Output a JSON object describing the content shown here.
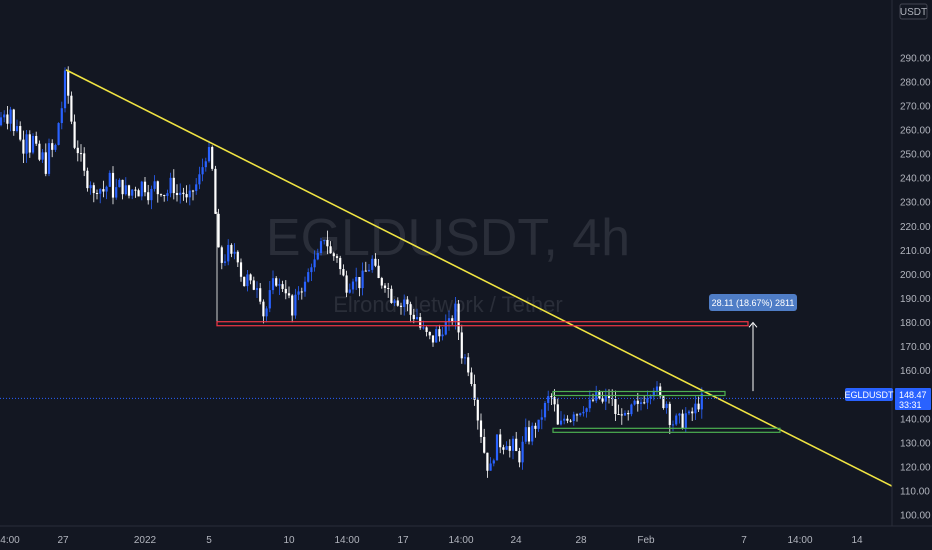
{
  "symbol_watermark": "EGLDUSDT, 4h",
  "name_watermark": "Elrond Network / Tether",
  "currency_label": "USDT",
  "price_tag": {
    "symbol": "EGLDUSDT",
    "price": "148.47",
    "countdown": "33:31"
  },
  "measure_label": "28.11 (18.67%) 2811",
  "colors": {
    "background": "#131722",
    "up": "#2962ff",
    "down": "#ffffff",
    "trendline": "#f0e442",
    "support": "#f23645",
    "range": "#4caf50",
    "price_tag": "#2962ff"
  },
  "chart_data": {
    "type": "candlestick",
    "ylim": [
      95,
      300
    ],
    "y_ticks": [
      100,
      110,
      120,
      130,
      140,
      150,
      160,
      170,
      180,
      190,
      200,
      210,
      220,
      230,
      240,
      250,
      260,
      270,
      280,
      290
    ],
    "y_tick_labels": [
      "100.00",
      "110.00",
      "120.00",
      "130.00",
      "140.00",
      "150.00",
      "160.00",
      "170.00",
      "180.00",
      "190.00",
      "200.00",
      "210.00",
      "220.00",
      "230.00",
      "240.00",
      "250.00",
      "260.00",
      "270.00",
      "280.00",
      "290.00"
    ],
    "x_ticks": [
      "4:00",
      "27",
      "2022",
      "5",
      "10",
      "14:00",
      "17",
      "14:00",
      "24",
      "28",
      "Feb",
      "7",
      "14:00",
      "14"
    ],
    "price_path": [
      [
        0,
        262
      ],
      [
        3,
        272
      ],
      [
        6,
        262
      ],
      [
        10,
        271
      ],
      [
        14,
        258
      ],
      [
        18,
        265
      ],
      [
        22,
        248
      ],
      [
        26,
        262
      ],
      [
        30,
        252
      ],
      [
        34,
        258
      ],
      [
        38,
        246
      ],
      [
        42,
        250
      ],
      [
        46,
        244
      ],
      [
        50,
        255
      ],
      [
        54,
        248
      ],
      [
        58,
        262
      ],
      [
        62,
        270
      ],
      [
        64,
        280
      ],
      [
        66,
        284
      ],
      [
        68,
        275
      ],
      [
        70,
        268
      ],
      [
        72,
        262
      ],
      [
        74,
        256
      ],
      [
        76,
        250
      ],
      [
        78,
        252
      ],
      [
        82,
        246
      ],
      [
        86,
        238
      ],
      [
        90,
        240
      ],
      [
        94,
        232
      ],
      [
        98,
        238
      ],
      [
        102,
        234
      ],
      [
        106,
        236
      ],
      [
        110,
        240
      ],
      [
        114,
        232
      ],
      [
        118,
        238
      ],
      [
        122,
        236
      ],
      [
        126,
        235
      ],
      [
        130,
        232
      ],
      [
        134,
        238
      ],
      [
        138,
        234
      ],
      [
        142,
        238
      ],
      [
        146,
        236
      ],
      [
        150,
        232
      ],
      [
        154,
        238
      ],
      [
        158,
        234
      ],
      [
        162,
        236
      ],
      [
        166,
        232
      ],
      [
        170,
        238
      ],
      [
        174,
        236
      ],
      [
        178,
        232
      ],
      [
        182,
        236
      ],
      [
        186,
        230
      ],
      [
        190,
        232
      ],
      [
        194,
        236
      ],
      [
        198,
        238
      ],
      [
        202,
        244
      ],
      [
        206,
        250
      ],
      [
        208,
        252
      ],
      [
        210,
        248
      ],
      [
        212,
        244
      ],
      [
        214,
        232
      ],
      [
        216,
        222
      ],
      [
        218,
        210
      ],
      [
        220,
        205
      ],
      [
        224,
        206
      ],
      [
        228,
        210
      ],
      [
        232,
        206
      ],
      [
        236,
        212
      ],
      [
        240,
        202
      ],
      [
        244,
        196
      ],
      [
        248,
        199
      ],
      [
        252,
        193
      ],
      [
        256,
        198
      ],
      [
        260,
        192
      ],
      [
        264,
        182
      ],
      [
        268,
        188
      ],
      [
        272,
        195
      ],
      [
        276,
        198
      ],
      [
        280,
        194
      ],
      [
        284,
        196
      ],
      [
        288,
        192
      ],
      [
        292,
        182
      ],
      [
        296,
        190
      ],
      [
        300,
        196
      ],
      [
        304,
        194
      ],
      [
        308,
        200
      ],
      [
        312,
        206
      ],
      [
        316,
        204
      ],
      [
        320,
        210
      ],
      [
        324,
        216
      ],
      [
        328,
        212
      ],
      [
        332,
        206
      ],
      [
        336,
        210
      ],
      [
        340,
        202
      ],
      [
        344,
        198
      ],
      [
        348,
        194
      ],
      [
        352,
        200
      ],
      [
        356,
        198
      ],
      [
        360,
        196
      ],
      [
        364,
        200
      ],
      [
        368,
        202
      ],
      [
        372,
        206
      ],
      [
        376,
        200
      ],
      [
        380,
        196
      ],
      [
        384,
        198
      ],
      [
        388,
        194
      ],
      [
        392,
        190
      ],
      [
        396,
        192
      ],
      [
        400,
        186
      ],
      [
        404,
        190
      ],
      [
        408,
        186
      ],
      [
        412,
        182
      ],
      [
        416,
        184
      ],
      [
        420,
        178
      ],
      [
        424,
        176
      ],
      [
        428,
        174
      ],
      [
        432,
        172
      ],
      [
        436,
        176
      ],
      [
        440,
        174
      ],
      [
        444,
        180
      ],
      [
        448,
        178
      ],
      [
        452,
        182
      ],
      [
        456,
        186
      ],
      [
        458,
        180
      ],
      [
        460,
        168
      ],
      [
        464,
        166
      ],
      [
        468,
        162
      ],
      [
        472,
        156
      ],
      [
        476,
        148
      ],
      [
        478,
        140
      ],
      [
        482,
        132
      ],
      [
        486,
        122
      ],
      [
        490,
        118
      ],
      [
        494,
        126
      ],
      [
        498,
        132
      ],
      [
        502,
        128
      ],
      [
        506,
        132
      ],
      [
        510,
        126
      ],
      [
        514,
        130
      ],
      [
        518,
        122
      ],
      [
        522,
        128
      ],
      [
        526,
        134
      ],
      [
        530,
        132
      ],
      [
        534,
        138
      ],
      [
        538,
        136
      ],
      [
        542,
        142
      ],
      [
        546,
        146
      ],
      [
        550,
        150
      ],
      [
        554,
        146
      ],
      [
        558,
        136
      ],
      [
        562,
        138
      ],
      [
        566,
        142
      ],
      [
        570,
        140
      ],
      [
        574,
        144
      ],
      [
        578,
        142
      ],
      [
        582,
        146
      ],
      [
        586,
        144
      ],
      [
        590,
        146
      ],
      [
        594,
        148
      ],
      [
        598,
        150
      ],
      [
        602,
        146
      ],
      [
        606,
        148
      ],
      [
        610,
        150
      ],
      [
        614,
        144
      ],
      [
        618,
        140
      ],
      [
        622,
        144
      ],
      [
        626,
        138
      ],
      [
        630,
        142
      ],
      [
        634,
        146
      ],
      [
        638,
        144
      ],
      [
        642,
        148
      ],
      [
        646,
        150
      ],
      [
        650,
        152
      ],
      [
        654,
        154
      ],
      [
        658,
        150
      ],
      [
        662,
        146
      ],
      [
        666,
        148
      ],
      [
        670,
        140
      ],
      [
        674,
        138
      ],
      [
        678,
        140
      ],
      [
        682,
        138
      ],
      [
        686,
        142
      ],
      [
        690,
        140
      ],
      [
        694,
        144
      ],
      [
        698,
        146
      ],
      [
        702,
        148
      ]
    ],
    "trendline": {
      "start": [
        66,
        285
      ],
      "end": [
        892,
        112
      ]
    },
    "support_line": {
      "level": 179.5,
      "from_x": 217,
      "to_x": 748
    },
    "range_top": {
      "level": 150.5,
      "from_x": 553,
      "to_x": 725
    },
    "range_bottom": {
      "level": 135.2,
      "from_x": 553,
      "to_x": 780
    },
    "last_price": 148.47
  }
}
